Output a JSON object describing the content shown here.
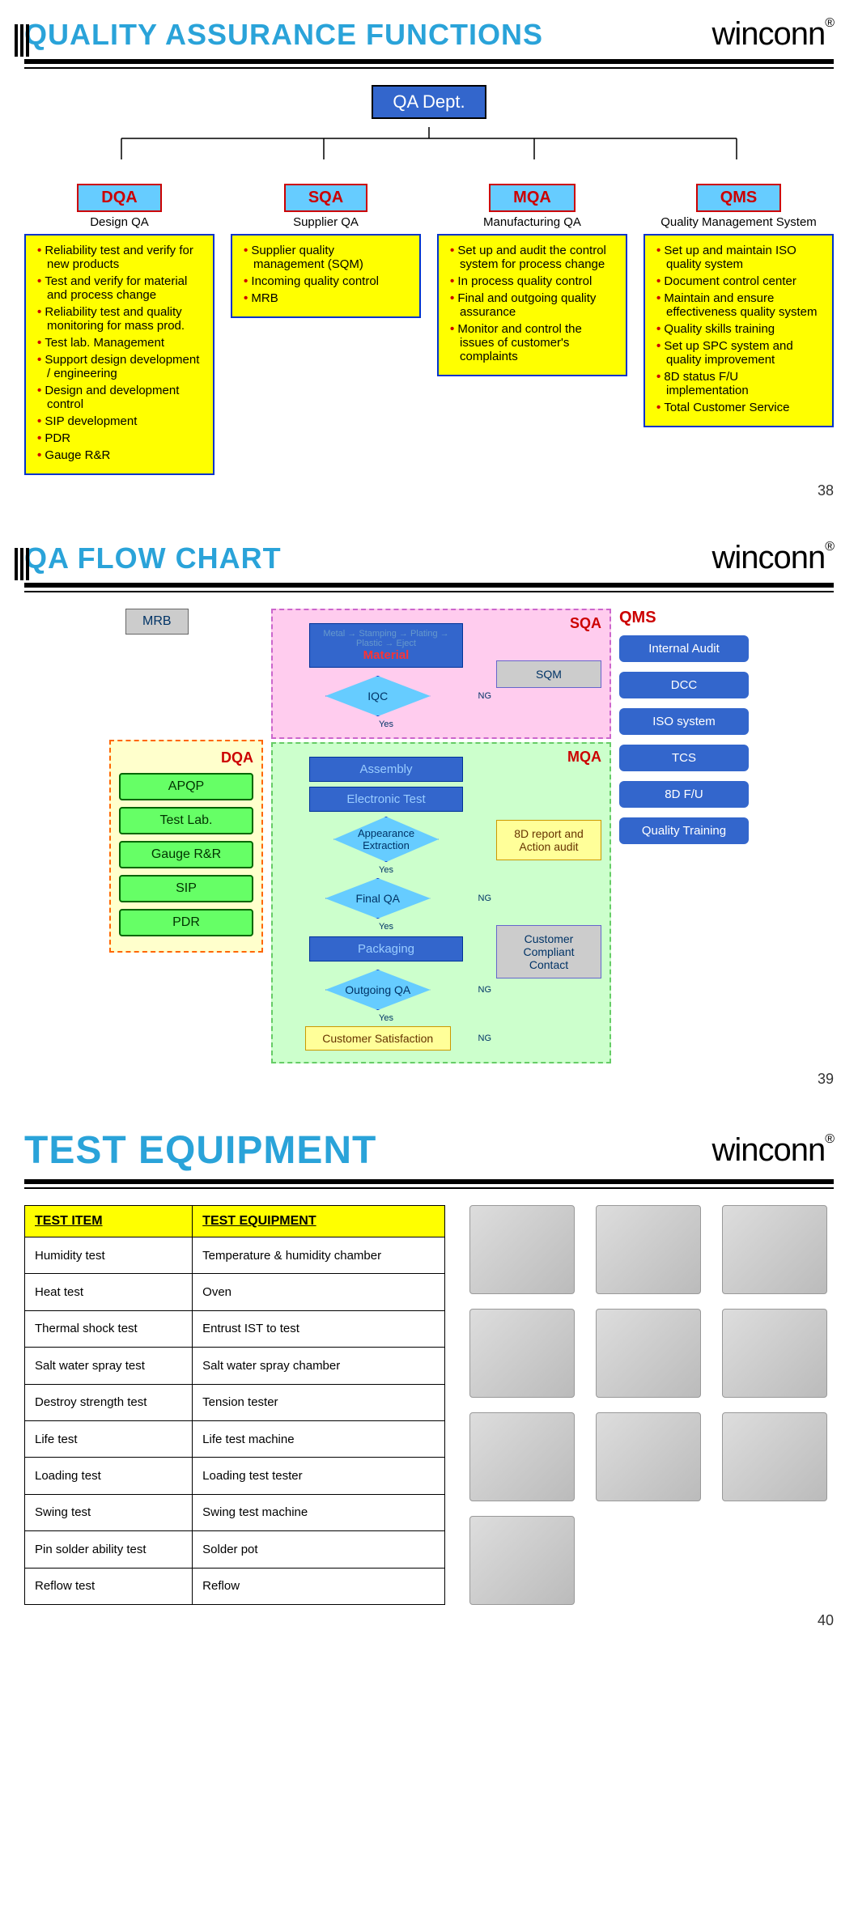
{
  "brand": "winconn",
  "slides": [
    {
      "title": "QUALITY ASSURANCE FUNCTIONS",
      "title_color": "#2aa3d9",
      "page": "38",
      "root": "QA Dept.",
      "branches": [
        {
          "head": "DQA",
          "sub": "Design QA",
          "items": [
            "Reliability test and verify for new products",
            "Test and verify for material and process change",
            "Reliability test and quality monitoring for mass prod.",
            "Test lab. Management",
            "Support design development / engineering",
            "Design and development control",
            "SIP development",
            "PDR",
            "Gauge R&R"
          ]
        },
        {
          "head": "SQA",
          "sub": "Supplier QA",
          "items": [
            "Supplier quality management (SQM)",
            "Incoming quality control",
            "MRB"
          ]
        },
        {
          "head": "MQA",
          "sub": "Manufacturing QA",
          "items": [
            "Set up and audit the control system for process change",
            "In process quality control",
            "Final and outgoing quality assurance",
            "Monitor and control the issues of customer's complaints"
          ]
        },
        {
          "head": "QMS",
          "sub": "Quality Management System",
          "items": [
            "Set up and maintain ISO quality system",
            "Document control center",
            "Maintain and ensure effectiveness quality system",
            "Quality skills training",
            "Set up SPC system and quality improvement",
            "8D status F/U implementation",
            "Total Customer Service"
          ]
        }
      ]
    },
    {
      "title": "QA FLOW CHART",
      "title_color": "#2aa3d9",
      "page": "39",
      "mrb": "MRB",
      "dqa": {
        "label": "DQA",
        "items": [
          "APQP",
          "Test Lab.",
          "Gauge R&R",
          "SIP",
          "PDR"
        ]
      },
      "sqa": {
        "label": "SQA",
        "material_top": "Metal → Stamping → Plating → Plastic → Eject",
        "material": "Material",
        "sqm": "SQM",
        "iqc": "IQC",
        "ng": "NG",
        "yes": "Yes"
      },
      "mqa": {
        "label": "MQA",
        "steps": [
          "Assembly",
          "Electronic Test"
        ],
        "appearance": "Appearance Extraction",
        "finalqa": "Final QA",
        "packaging": "Packaging",
        "outgoing": "Outgoing QA",
        "cs": "Customer Satisfaction",
        "eightd": "8D report and Action audit",
        "ccc": "Customer Compliant Contact",
        "ng": "NG",
        "yes": "Yes"
      },
      "qms": {
        "label": "QMS",
        "items": [
          "Internal Audit",
          "DCC",
          "ISO system",
          "TCS",
          "8D F/U",
          "Quality Training"
        ]
      }
    },
    {
      "title": "TEST EQUIPMENT",
      "title_color": "#2aa3d9",
      "page": "40",
      "table": {
        "headers": [
          "TEST ITEM",
          "TEST EQUIPMENT"
        ],
        "rows": [
          [
            "Humidity test",
            "Temperature & humidity chamber"
          ],
          [
            "Heat test",
            "Oven"
          ],
          [
            "Thermal shock test",
            "Entrust IST to test"
          ],
          [
            "Salt water spray test",
            "Salt water spray chamber"
          ],
          [
            "Destroy strength test",
            "Tension tester"
          ],
          [
            "Life test",
            "Life test machine"
          ],
          [
            "Loading test",
            "Loading test tester"
          ],
          [
            "Swing test",
            "Swing test machine"
          ],
          [
            "Pin solder ability test",
            "Solder pot"
          ],
          [
            "Reflow test",
            "Reflow"
          ]
        ]
      },
      "image_count": 10
    }
  ],
  "colors": {
    "cyan_head": "#66ccff",
    "red_border": "#cc0000",
    "yellow": "#ffff00",
    "blue_border": "#0033cc",
    "qms_blue": "#3366cc"
  }
}
